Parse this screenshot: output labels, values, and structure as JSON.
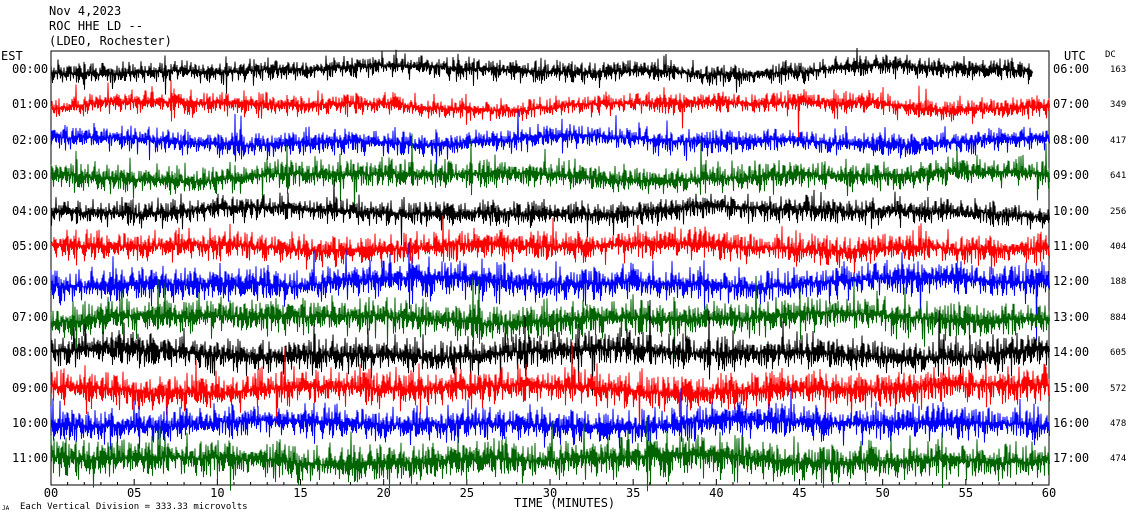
{
  "header": {
    "line1": "Nov 4,2023",
    "line2": "ROC HHE LD --",
    "line3": "(LDEO, Rochester)"
  },
  "left_axis_title": "EST",
  "right_axis_title": "UTC",
  "dc_title": "DC",
  "footer": {
    "xlabel": "TIME (MINUTES)",
    "scale_note": "Each Vertical Division = 333.33 microvolts",
    "corner_mark": "JA"
  },
  "chart_data": {
    "type": "line",
    "title": "ROC HHE LD --",
    "xlabel": "TIME (MINUTES)",
    "xlim": [
      0,
      60
    ],
    "x_ticks": [
      "00",
      "05",
      "10",
      "15",
      "20",
      "25",
      "30",
      "35",
      "40",
      "45",
      "50",
      "55",
      "60"
    ],
    "trace_colors": [
      "#000000",
      "#ff0000",
      "#0000ff",
      "#006400"
    ],
    "rows": [
      {
        "est": "00:00",
        "utc": "06:00",
        "dc": "163",
        "color": "#000000",
        "amplitude": 10,
        "end_minute": 59
      },
      {
        "est": "01:00",
        "utc": "07:00",
        "dc": "349",
        "color": "#ff0000",
        "amplitude": 10,
        "end_minute": 60
      },
      {
        "est": "02:00",
        "utc": "08:00",
        "dc": "417",
        "color": "#0000ff",
        "amplitude": 11,
        "end_minute": 60
      },
      {
        "est": "03:00",
        "utc": "09:00",
        "dc": "641",
        "color": "#006400",
        "amplitude": 13,
        "end_minute": 60
      },
      {
        "est": "04:00",
        "utc": "10:00",
        "dc": "256",
        "color": "#000000",
        "amplitude": 12,
        "end_minute": 60
      },
      {
        "est": "05:00",
        "utc": "11:00",
        "dc": "404",
        "color": "#ff0000",
        "amplitude": 14,
        "end_minute": 60
      },
      {
        "est": "06:00",
        "utc": "12:00",
        "dc": "188",
        "color": "#0000ff",
        "amplitude": 16,
        "end_minute": 60
      },
      {
        "est": "07:00",
        "utc": "13:00",
        "dc": "884",
        "color": "#006400",
        "amplitude": 16,
        "end_minute": 60
      },
      {
        "est": "08:00",
        "utc": "14:00",
        "dc": "605",
        "color": "#000000",
        "amplitude": 16,
        "end_minute": 60
      },
      {
        "est": "09:00",
        "utc": "15:00",
        "dc": "572",
        "color": "#ff0000",
        "amplitude": 17,
        "end_minute": 60
      },
      {
        "est": "10:00",
        "utc": "16:00",
        "dc": "478",
        "color": "#0000ff",
        "amplitude": 16,
        "end_minute": 60
      },
      {
        "est": "11:00",
        "utc": "17:00",
        "dc": "474",
        "color": "#006400",
        "amplitude": 18,
        "end_minute": 60
      }
    ]
  }
}
